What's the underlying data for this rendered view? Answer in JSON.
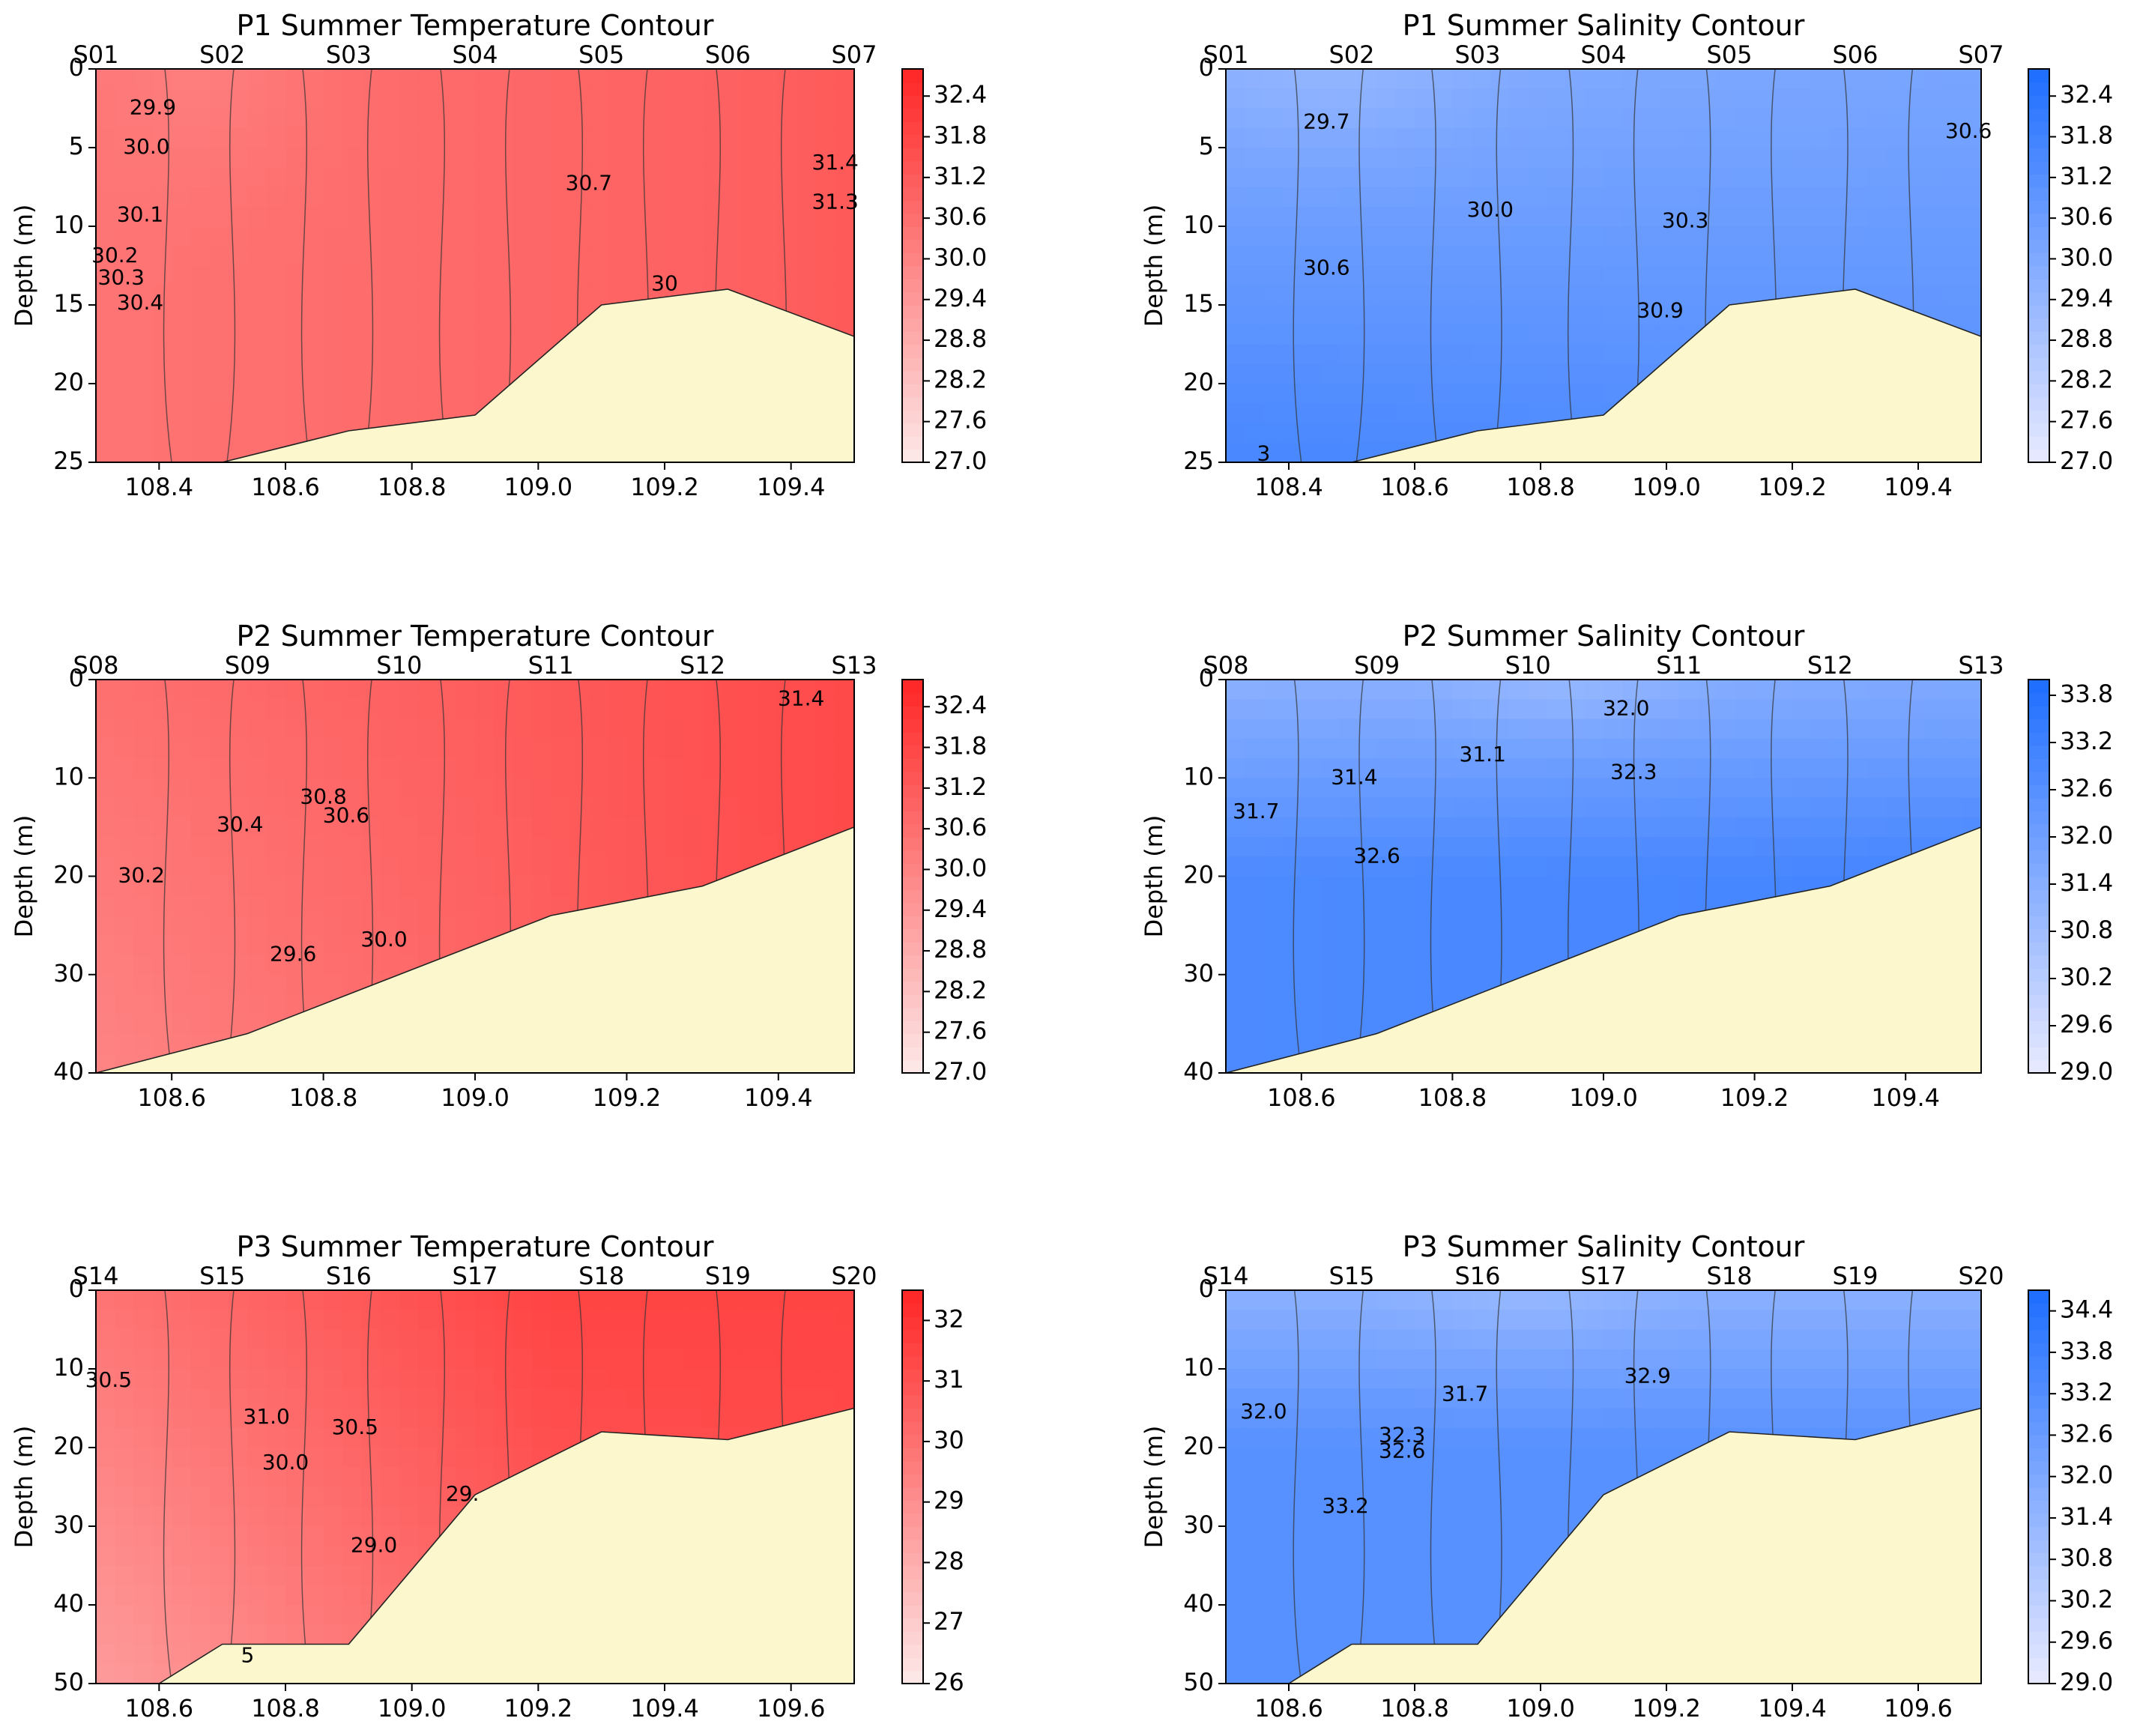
{
  "chart_data": [
    {
      "type": "contour",
      "title": "P1 Summer Temperature Contour",
      "xlabel": "",
      "ylabel": "Depth (m)",
      "xlim": [
        108.3,
        109.5
      ],
      "ylim": [
        25,
        0
      ],
      "xticks": [
        "108.4",
        "108.6",
        "108.8",
        "109.0",
        "109.2",
        "109.4"
      ],
      "yticks": [
        "0",
        "5",
        "10",
        "15",
        "20",
        "25"
      ],
      "stations": [
        {
          "name": "S01",
          "x": 108.3
        },
        {
          "name": "S02",
          "x": 108.5
        },
        {
          "name": "S03",
          "x": 108.7
        },
        {
          "name": "S04",
          "x": 108.9
        },
        {
          "name": "S05",
          "x": 109.1
        },
        {
          "name": "S06",
          "x": 109.3
        },
        {
          "name": "S07",
          "x": 109.5
        }
      ],
      "seabed": [
        [
          108.3,
          25
        ],
        [
          108.5,
          25
        ],
        [
          108.7,
          23
        ],
        [
          108.9,
          22
        ],
        [
          109.1,
          15
        ],
        [
          109.3,
          14
        ],
        [
          109.5,
          17
        ]
      ],
      "colorbar": {
        "min": 27.0,
        "max": 32.8,
        "ticks": [
          "27.0",
          "27.6",
          "28.2",
          "28.8",
          "29.4",
          "30.0",
          "30.6",
          "31.2",
          "31.8",
          "32.4"
        ]
      },
      "contour_labels": [
        {
          "text": "29.9",
          "x": 108.39,
          "y": 2.5
        },
        {
          "text": "30.0",
          "x": 108.38,
          "y": 5.0
        },
        {
          "text": "30.1",
          "x": 108.37,
          "y": 9.3
        },
        {
          "text": "30.2",
          "x": 108.33,
          "y": 11.9
        },
        {
          "text": "30.3",
          "x": 108.34,
          "y": 13.3
        },
        {
          "text": "30.4",
          "x": 108.37,
          "y": 14.9
        },
        {
          "text": "30.7",
          "x": 109.08,
          "y": 7.3
        },
        {
          "text": "30",
          "x": 109.2,
          "y": 13.7
        },
        {
          "text": "31.4",
          "x": 109.47,
          "y": 6.0
        },
        {
          "text": "31.3",
          "x": 109.47,
          "y": 8.5
        }
      ],
      "field_anchor": 31.0
    },
    {
      "type": "contour",
      "title": "P1 Summer Salinity Contour",
      "xlabel": "",
      "ylabel": "Depth (m)",
      "xlim": [
        108.3,
        109.5
      ],
      "ylim": [
        25,
        0
      ],
      "xticks": [
        "108.4",
        "108.6",
        "108.8",
        "109.0",
        "109.2",
        "109.4"
      ],
      "yticks": [
        "0",
        "5",
        "10",
        "15",
        "20",
        "25"
      ],
      "stations": [
        {
          "name": "S01",
          "x": 108.3
        },
        {
          "name": "S02",
          "x": 108.5
        },
        {
          "name": "S03",
          "x": 108.7
        },
        {
          "name": "S04",
          "x": 108.9
        },
        {
          "name": "S05",
          "x": 109.1
        },
        {
          "name": "S06",
          "x": 109.3
        },
        {
          "name": "S07",
          "x": 109.5
        }
      ],
      "seabed": [
        [
          108.3,
          25
        ],
        [
          108.5,
          25
        ],
        [
          108.7,
          23
        ],
        [
          108.9,
          22
        ],
        [
          109.1,
          15
        ],
        [
          109.3,
          14
        ],
        [
          109.5,
          17
        ]
      ],
      "colorbar": {
        "min": 27.0,
        "max": 32.8,
        "ticks": [
          "27.0",
          "27.6",
          "28.2",
          "28.8",
          "29.4",
          "30.0",
          "30.6",
          "31.2",
          "31.8",
          "32.4"
        ]
      },
      "contour_labels": [
        {
          "text": "29.7",
          "x": 108.46,
          "y": 3.4
        },
        {
          "text": "30.0",
          "x": 108.72,
          "y": 9.0
        },
        {
          "text": "30.3",
          "x": 109.03,
          "y": 9.7
        },
        {
          "text": "30.6",
          "x": 108.46,
          "y": 12.7
        },
        {
          "text": "30.9",
          "x": 108.99,
          "y": 15.4
        },
        {
          "text": "30.6",
          "x": 109.48,
          "y": 4.0
        },
        {
          "text": "3",
          "x": 108.36,
          "y": 24.5
        }
      ]
    },
    {
      "type": "contour",
      "title": "P2 Summer Temperature Contour",
      "xlabel": "",
      "ylabel": "Depth (m)",
      "xlim": [
        108.5,
        109.5
      ],
      "ylim": [
        40,
        0
      ],
      "xticks": [
        "108.6",
        "108.8",
        "109.0",
        "109.2",
        "109.4"
      ],
      "yticks": [
        "0",
        "10",
        "20",
        "30",
        "40"
      ],
      "stations": [
        {
          "name": "S08",
          "x": 108.5
        },
        {
          "name": "S09",
          "x": 108.7
        },
        {
          "name": "S10",
          "x": 108.9
        },
        {
          "name": "S11",
          "x": 109.1
        },
        {
          "name": "S12",
          "x": 109.3
        },
        {
          "name": "S13",
          "x": 109.5
        }
      ],
      "seabed": [
        [
          108.5,
          40
        ],
        [
          108.7,
          36
        ],
        [
          108.9,
          30
        ],
        [
          109.1,
          24
        ],
        [
          109.3,
          21
        ],
        [
          109.5,
          15
        ]
      ],
      "colorbar": {
        "min": 27.0,
        "max": 32.8,
        "ticks": [
          "27.0",
          "27.6",
          "28.2",
          "28.8",
          "29.4",
          "30.0",
          "30.6",
          "31.2",
          "31.8",
          "32.4"
        ]
      },
      "contour_labels": [
        {
          "text": "30.8",
          "x": 108.8,
          "y": 12.0
        },
        {
          "text": "30.4",
          "x": 108.69,
          "y": 14.8
        },
        {
          "text": "30.6",
          "x": 108.83,
          "y": 13.9
        },
        {
          "text": "30.2",
          "x": 108.56,
          "y": 20.0
        },
        {
          "text": "29.6",
          "x": 108.76,
          "y": 28.0
        },
        {
          "text": "30.0",
          "x": 108.88,
          "y": 26.5
        },
        {
          "text": "31.4",
          "x": 109.43,
          "y": 2.0
        }
      ]
    },
    {
      "type": "contour",
      "title": "P2 Summer Salinity Contour",
      "xlabel": "",
      "ylabel": "Depth (m)",
      "xlim": [
        108.5,
        109.5
      ],
      "ylim": [
        40,
        0
      ],
      "xticks": [
        "108.6",
        "108.8",
        "109.0",
        "109.2",
        "109.4"
      ],
      "yticks": [
        "0",
        "10",
        "20",
        "30",
        "40"
      ],
      "stations": [
        {
          "name": "S08",
          "x": 108.5
        },
        {
          "name": "S09",
          "x": 108.7
        },
        {
          "name": "S10",
          "x": 108.9
        },
        {
          "name": "S11",
          "x": 109.1
        },
        {
          "name": "S12",
          "x": 109.3
        },
        {
          "name": "S13",
          "x": 109.5
        }
      ],
      "seabed": [
        [
          108.5,
          40
        ],
        [
          108.7,
          36
        ],
        [
          108.9,
          30
        ],
        [
          109.1,
          24
        ],
        [
          109.3,
          21
        ],
        [
          109.5,
          15
        ]
      ],
      "colorbar": {
        "min": 29.0,
        "max": 34.0,
        "ticks": [
          "29.0",
          "29.6",
          "30.2",
          "30.8",
          "31.4",
          "32.0",
          "32.6",
          "33.2",
          "33.8"
        ]
      },
      "contour_labels": [
        {
          "text": "31.1",
          "x": 108.84,
          "y": 7.7
        },
        {
          "text": "31.4",
          "x": 108.67,
          "y": 10.0
        },
        {
          "text": "31.7",
          "x": 108.54,
          "y": 13.5
        },
        {
          "text": "32.0",
          "x": 109.03,
          "y": 3.0
        },
        {
          "text": "32.3",
          "x": 109.04,
          "y": 9.5
        },
        {
          "text": "32.6",
          "x": 108.7,
          "y": 18.0
        }
      ]
    },
    {
      "type": "contour",
      "title": "P3 Summer Temperature Contour",
      "xlabel": "",
      "ylabel": "Depth (m)",
      "xlim": [
        108.5,
        109.7
      ],
      "ylim": [
        50,
        0
      ],
      "xticks": [
        "108.6",
        "108.8",
        "109.0",
        "109.2",
        "109.4",
        "109.6"
      ],
      "yticks": [
        "0",
        "10",
        "20",
        "30",
        "40",
        "50"
      ],
      "stations": [
        {
          "name": "S14",
          "x": 108.5
        },
        {
          "name": "S15",
          "x": 108.7
        },
        {
          "name": "S16",
          "x": 108.9
        },
        {
          "name": "S17",
          "x": 109.1
        },
        {
          "name": "S18",
          "x": 109.3
        },
        {
          "name": "S19",
          "x": 109.5
        },
        {
          "name": "S20",
          "x": 109.7
        }
      ],
      "seabed": [
        [
          108.5,
          50
        ],
        [
          108.6,
          50
        ],
        [
          108.7,
          45
        ],
        [
          108.9,
          45
        ],
        [
          109.1,
          26
        ],
        [
          109.3,
          18
        ],
        [
          109.5,
          19
        ],
        [
          109.7,
          15
        ]
      ],
      "colorbar": {
        "min": 26.0,
        "max": 32.5,
        "ticks": [
          "26",
          "27",
          "28",
          "29",
          "30",
          "31",
          "32"
        ]
      },
      "contour_labels": [
        {
          "text": "30.5",
          "x": 108.52,
          "y": 11.5
        },
        {
          "text": "31.0",
          "x": 108.77,
          "y": 16.2
        },
        {
          "text": "30.5",
          "x": 108.91,
          "y": 17.5
        },
        {
          "text": "30.0",
          "x": 108.8,
          "y": 22.0
        },
        {
          "text": "29.",
          "x": 109.08,
          "y": 26.0
        },
        {
          "text": "29.0",
          "x": 108.94,
          "y": 32.5
        },
        {
          "text": "5",
          "x": 108.74,
          "y": 46.5
        }
      ]
    },
    {
      "type": "contour",
      "title": "P3 Summer Salinity Contour",
      "xlabel": "",
      "ylabel": "Depth (m)",
      "xlim": [
        108.5,
        109.7
      ],
      "ylim": [
        50,
        0
      ],
      "xticks": [
        "108.6",
        "108.8",
        "109.0",
        "109.2",
        "109.4",
        "109.6"
      ],
      "yticks": [
        "0",
        "10",
        "20",
        "30",
        "40",
        "50"
      ],
      "stations": [
        {
          "name": "S14",
          "x": 108.5
        },
        {
          "name": "S15",
          "x": 108.7
        },
        {
          "name": "S16",
          "x": 108.9
        },
        {
          "name": "S17",
          "x": 109.1
        },
        {
          "name": "S18",
          "x": 109.3
        },
        {
          "name": "S19",
          "x": 109.5
        },
        {
          "name": "S20",
          "x": 109.7
        }
      ],
      "seabed": [
        [
          108.5,
          50
        ],
        [
          108.6,
          50
        ],
        [
          108.7,
          45
        ],
        [
          108.9,
          45
        ],
        [
          109.1,
          26
        ],
        [
          109.3,
          18
        ],
        [
          109.5,
          19
        ],
        [
          109.7,
          15
        ]
      ],
      "colorbar": {
        "min": 29.0,
        "max": 34.7,
        "ticks": [
          "29.0",
          "29.6",
          "30.2",
          "30.8",
          "31.4",
          "32.0",
          "32.6",
          "33.2",
          "33.8",
          "34.4"
        ]
      },
      "contour_labels": [
        {
          "text": "31.7",
          "x": 108.88,
          "y": 13.3
        },
        {
          "text": "32.0",
          "x": 108.56,
          "y": 15.5
        },
        {
          "text": "32.3",
          "x": 108.78,
          "y": 18.5
        },
        {
          "text": "32.6",
          "x": 108.78,
          "y": 20.5
        },
        {
          "text": "32.9",
          "x": 109.17,
          "y": 11.0
        },
        {
          "text": "33.2",
          "x": 108.69,
          "y": 27.5
        }
      ]
    }
  ],
  "colors": {
    "temperature_low": "#fde6e6",
    "temperature_high": "#ff2222",
    "salinity_low": "#e6e8ff",
    "salinity_high": "#1a6bff",
    "seabed": "#fdf7cd",
    "contour_line": "#333333"
  }
}
